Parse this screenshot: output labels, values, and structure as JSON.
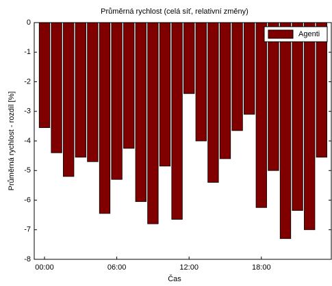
{
  "chart_data": {
    "type": "bar",
    "title": "Průměrná rychlost (celá síť, relativní změny)",
    "x_label": "Čas",
    "y_label": "Průměrná rychlost  - rozdíl [%]",
    "categories": [
      "00:00",
      null,
      null,
      null,
      null,
      null,
      "06:00",
      null,
      null,
      null,
      null,
      null,
      "12:00",
      null,
      null,
      null,
      null,
      null,
      "18:00",
      null,
      null,
      null,
      null,
      null
    ],
    "series": [
      {
        "name": "Agenti",
        "color": "#800000",
        "values": [
          -3.55,
          -4.4,
          -5.2,
          -4.55,
          -4.7,
          -6.45,
          -5.3,
          -4.25,
          -6.05,
          -6.8,
          -4.85,
          -6.65,
          -2.4,
          -4.0,
          -5.4,
          -4.6,
          -3.65,
          -3.1,
          -6.25,
          -5.0,
          -7.3,
          -6.35,
          -7.0,
          -4.55
        ]
      }
    ],
    "ylim": [
      -8,
      0
    ],
    "yticks": [
      0,
      -1,
      -2,
      -3,
      -4,
      -5,
      -6,
      -7,
      -8
    ],
    "legend": "upper right"
  }
}
